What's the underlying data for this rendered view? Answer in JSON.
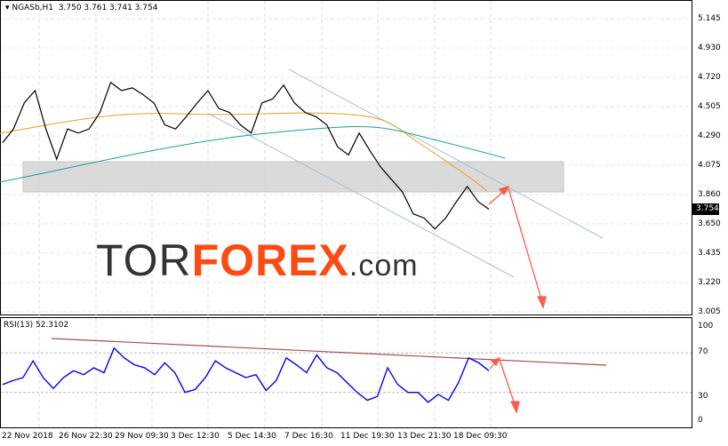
{
  "header": {
    "symbol": "NGASb,H1",
    "ohlc": "3.750 3.761 3.741 3.754"
  },
  "price_axis": [
    "5.145",
    "4.930",
    "4.720",
    "4.505",
    "4.290",
    "4.075",
    "3.860",
    "3.650",
    "3.435",
    "3.220",
    "3.005"
  ],
  "current_price": "3.754",
  "rsi": {
    "label": "RSI(13) 52.3102",
    "axis": [
      "100",
      "70",
      "30",
      "0"
    ]
  },
  "time_axis": [
    "22 Nov 2018",
    "26 Nov 22:30",
    "29 Nov 09:30",
    "3 Dec 12:30",
    "5 Dec 14:30",
    "7 Dec 16:30",
    "11 Dec 19:30",
    "13 Dec 21:30",
    "18 Dec 09:30"
  ],
  "logo": {
    "part1": "TOR",
    "part2": "FOREX",
    ".com": ".com"
  },
  "colors": {
    "price": "#000000",
    "ma_fast": "#e0a020",
    "ma_slow": "#20a090",
    "rsi": "#0000ff",
    "arrow": "#ff5a4a",
    "zone": "#d0d0d0",
    "channel": "#a8c0d0",
    "rsi_trend": "#a05050"
  },
  "chart_data": {
    "type": "line",
    "price_ylim": [
      3.005,
      5.145
    ],
    "price": [
      4.24,
      4.34,
      4.53,
      4.62,
      4.34,
      4.12,
      4.34,
      4.31,
      4.34,
      4.46,
      4.68,
      4.62,
      4.64,
      4.59,
      4.53,
      4.37,
      4.34,
      4.43,
      4.53,
      4.62,
      4.49,
      4.46,
      4.37,
      4.31,
      4.53,
      4.56,
      4.66,
      4.53,
      4.46,
      4.43,
      4.37,
      4.21,
      4.15,
      4.31,
      4.18,
      4.06,
      3.97,
      3.88,
      3.72,
      3.69,
      3.61,
      3.69,
      3.81,
      3.92,
      3.81,
      3.754
    ],
    "rsi": [
      38,
      42,
      45,
      62,
      45,
      34,
      45,
      52,
      48,
      55,
      50,
      75,
      65,
      58,
      55,
      48,
      60,
      50,
      30,
      33,
      45,
      62,
      55,
      50,
      45,
      48,
      32,
      42,
      65,
      58,
      50,
      68,
      55,
      50,
      40,
      30,
      22,
      26,
      55,
      38,
      30,
      30,
      20,
      28,
      22,
      40,
      65,
      60,
      52
    ],
    "rsi_ylim": [
      0,
      100
    ],
    "rsi_levels": [
      30,
      70
    ]
  }
}
